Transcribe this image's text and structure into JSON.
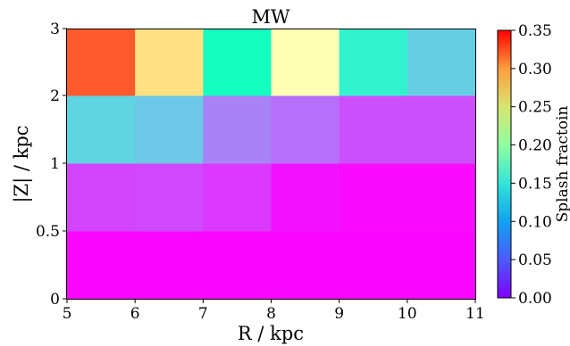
{
  "chart_data": {
    "type": "heatmap",
    "title": "MW",
    "xlabel": "R / kpc",
    "ylabel": "|Z| / kpc",
    "colorbar_label": "Splash fractoin",
    "colormap": "rainbow",
    "x_edges": [
      5,
      6,
      7,
      8,
      9,
      10,
      11
    ],
    "x_ticks": [
      "5",
      "6",
      "7",
      "8",
      "9",
      "10",
      "11"
    ],
    "y_edges": [
      "0",
      "0.5",
      "1",
      "2",
      "3"
    ],
    "vmin": 0.0,
    "vmax": 0.35,
    "colorbar_ticks": [
      "0.00",
      "0.05",
      "0.10",
      "0.15",
      "0.20",
      "0.25",
      "0.30",
      "0.35"
    ],
    "colorbar_tick_values": [
      0.0,
      0.05,
      0.1,
      0.15,
      0.2,
      0.25,
      0.3,
      0.35
    ],
    "rows": [
      {
        "z_range": "0-0.5",
        "values": [
          0.003,
          0.003,
          0.003,
          0.003,
          0.003,
          0.003
        ]
      },
      {
        "z_range": "0.5-1",
        "values": [
          0.03,
          0.032,
          0.025,
          0.008,
          0.005,
          0.005
        ]
      },
      {
        "z_range": "1-2",
        "values": [
          0.11,
          0.1,
          0.06,
          0.05,
          0.035,
          0.035
        ]
      },
      {
        "z_range": "2-3",
        "values": [
          0.31,
          0.23,
          0.16,
          0.175,
          0.14,
          0.105
        ]
      }
    ]
  }
}
